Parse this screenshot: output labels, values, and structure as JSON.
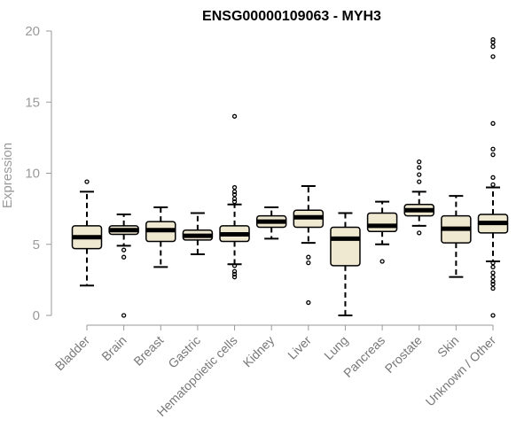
{
  "chart_data": {
    "type": "boxplot",
    "title": "ENSG00000109063 - MYH3",
    "ylabel": "Expression",
    "xlabel": "",
    "ylim": [
      0,
      20
    ],
    "yticks": [
      0,
      5,
      10,
      15,
      20
    ],
    "grid": false,
    "legend": "none",
    "colors": {
      "box_fill": "#efe9d2",
      "box_stroke": "#000000",
      "axis": "#9a9a9a"
    },
    "categories": [
      "Bladder",
      "Brain",
      "Breast",
      "Gastric",
      "Hematopoietic cells",
      "Kidney",
      "Liver",
      "Lung",
      "Pancreas",
      "Prostate",
      "Skin",
      "Unknown / Other"
    ],
    "boxes": [
      {
        "category": "Bladder",
        "min": 2.1,
        "q1": 4.7,
        "median": 5.5,
        "q3": 6.3,
        "max": 8.7,
        "outliers": [
          9.4
        ]
      },
      {
        "category": "Brain",
        "min": 4.9,
        "q1": 5.7,
        "median": 6.0,
        "q3": 6.3,
        "max": 7.1,
        "outliers": [
          4.6,
          4.1,
          0.0
        ]
      },
      {
        "category": "Breast",
        "min": 3.4,
        "q1": 5.2,
        "median": 6.0,
        "q3": 6.6,
        "max": 7.6,
        "outliers": []
      },
      {
        "category": "Gastric",
        "min": 4.3,
        "q1": 5.3,
        "median": 5.6,
        "q3": 6.0,
        "max": 7.2,
        "outliers": []
      },
      {
        "category": "Hematopoietic cells",
        "min": 3.6,
        "q1": 5.2,
        "median": 5.7,
        "q3": 6.3,
        "max": 7.8,
        "outliers": [
          14.0,
          9.0,
          8.7,
          8.5,
          8.2,
          8.0,
          3.5,
          3.1,
          2.9,
          2.7
        ]
      },
      {
        "category": "Kidney",
        "min": 5.4,
        "q1": 6.2,
        "median": 6.6,
        "q3": 7.0,
        "max": 7.6,
        "outliers": []
      },
      {
        "category": "Liver",
        "min": 5.1,
        "q1": 6.2,
        "median": 6.9,
        "q3": 7.4,
        "max": 9.1,
        "outliers": [
          4.1,
          3.7,
          0.9
        ]
      },
      {
        "category": "Lung",
        "min": 0.0,
        "q1": 3.5,
        "median": 5.4,
        "q3": 6.2,
        "max": 7.2,
        "outliers": []
      },
      {
        "category": "Pancreas",
        "min": 5.0,
        "q1": 5.9,
        "median": 6.3,
        "q3": 7.2,
        "max": 8.0,
        "outliers": [
          3.8
        ]
      },
      {
        "category": "Prostate",
        "min": 6.3,
        "q1": 7.0,
        "median": 7.4,
        "q3": 7.8,
        "max": 8.7,
        "outliers": [
          10.8,
          10.4,
          9.9,
          9.4,
          5.8
        ]
      },
      {
        "category": "Skin",
        "min": 2.7,
        "q1": 5.1,
        "median": 6.1,
        "q3": 7.0,
        "max": 8.4,
        "outliers": []
      },
      {
        "category": "Unknown / Other",
        "min": 3.8,
        "q1": 5.8,
        "median": 6.5,
        "q3": 7.1,
        "max": 9.0,
        "outliers": [
          19.4,
          19.2,
          18.9,
          18.2,
          13.5,
          11.7,
          11.3,
          9.7,
          9.2,
          3.7,
          3.4,
          3.0,
          2.7,
          2.4,
          2.2,
          1.9,
          0.0
        ]
      }
    ]
  }
}
